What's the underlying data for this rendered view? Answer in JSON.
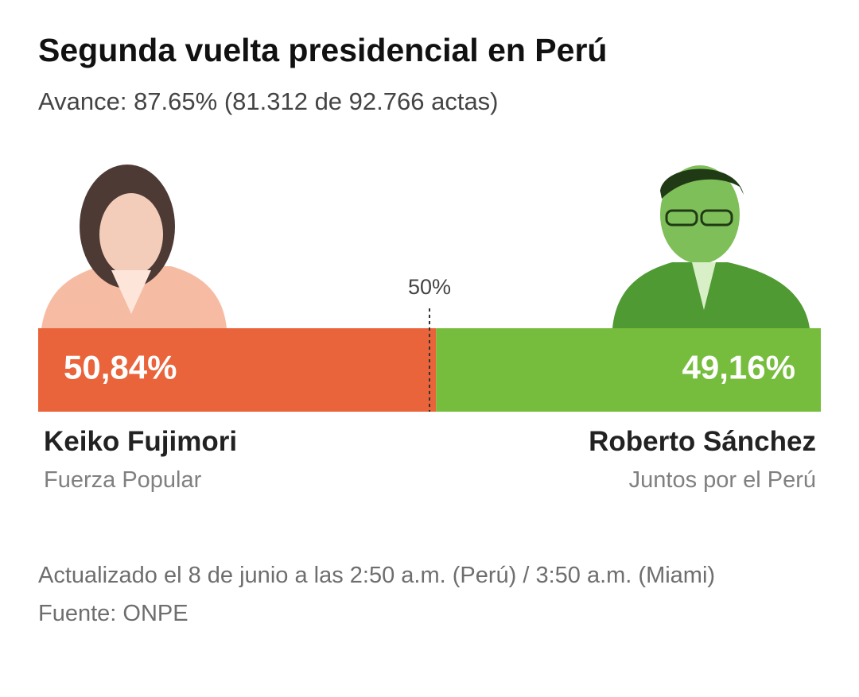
{
  "chart_data": {
    "type": "split-bar",
    "title": "Segunda vuelta presidencial en Perú",
    "subtitle": "Avance: 87.65% (81.312 de 92.766 actas)",
    "xlim": [
      0,
      100
    ],
    "xticks": [
      {
        "value": 50,
        "label": "50%"
      }
    ],
    "series": [
      {
        "name": "Keiko Fujimori",
        "party": "Fuerza Popular",
        "color": "#e9643a",
        "values": [
          50.84
        ],
        "value_labels": [
          "50,84%"
        ]
      },
      {
        "name": "Roberto Sánchez",
        "party": "Juntos por el Perú",
        "color": "#76bd3d",
        "values": [
          49.16
        ],
        "value_labels": [
          "49,16%"
        ]
      }
    ],
    "notes": [
      "Actualizado el 8 de junio a las 2:50 a.m. (Perú) / 3:50 a.m. (Miami)",
      "Fuente: ONPE"
    ]
  }
}
